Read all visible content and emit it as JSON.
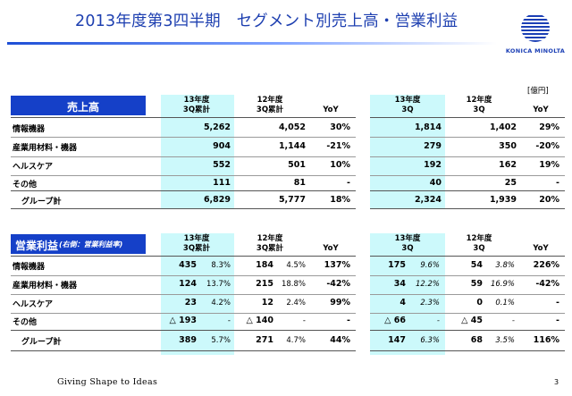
{
  "header": {
    "title": "2013年度第3四半期　セグメント別売上高・営業利益",
    "logo_text": "KONICA MINOLTA",
    "unit": "[億円]"
  },
  "sales_table": {
    "badge": "売上高",
    "cols": {
      "c1": "13年度\n3Q累計",
      "c2": "12年度\n3Q累計",
      "c3": "YoY",
      "c4": "13年度\n3Q",
      "c5": "12年度\n3Q",
      "c6": "YoY"
    },
    "rows": [
      {
        "label": "情報機器",
        "v1": "5,262",
        "v2": "4,052",
        "yoy1": "30%",
        "v3": "1,814",
        "v4": "1,402",
        "yoy2": "29%"
      },
      {
        "label": "産業用材料・機器",
        "v1": "904",
        "v2": "1,144",
        "yoy1": "-21%",
        "v3": "279",
        "v4": "350",
        "yoy2": "-20%"
      },
      {
        "label": "ヘルスケア",
        "v1": "552",
        "v2": "501",
        "yoy1": "10%",
        "v3": "192",
        "v4": "162",
        "yoy2": "19%"
      },
      {
        "label": "その他",
        "v1": "111",
        "v2": "81",
        "yoy1": "-",
        "v3": "40",
        "v4": "25",
        "yoy2": "-"
      },
      {
        "label": "グループ計",
        "v1": "6,829",
        "v2": "5,777",
        "yoy1": "18%",
        "v3": "2,324",
        "v4": "1,939",
        "yoy2": "20%"
      }
    ]
  },
  "op_table": {
    "badge_main": "営業利益",
    "badge_sub": "(右側：営業利益率)",
    "cols": {
      "c1": "13年度\n3Q累計",
      "c2": "12年度\n3Q累計",
      "c3": "YoY",
      "c4": "13年度\n3Q",
      "c5": "12年度\n3Q",
      "c6": "YoY"
    },
    "rows": [
      {
        "label": "情報機器",
        "v1": "435",
        "p1": "8.3%",
        "v2": "184",
        "p2": "4.5%",
        "yoy1": "137%",
        "v3": "175",
        "p3": "9.6%",
        "v4": "54",
        "p4": "3.8%",
        "yoy2": "226%"
      },
      {
        "label": "産業用材料・機器",
        "v1": "124",
        "p1": "13.7%",
        "v2": "215",
        "p2": "18.8%",
        "yoy1": "-42%",
        "v3": "34",
        "p3": "12.2%",
        "v4": "59",
        "p4": "16.9%",
        "yoy2": "-42%"
      },
      {
        "label": "ヘルスケア",
        "v1": "23",
        "p1": "4.2%",
        "v2": "12",
        "p2": "2.4%",
        "yoy1": "99%",
        "v3": "4",
        "p3": "2.3%",
        "v4": "0",
        "p4": "0.1%",
        "yoy2": "-"
      },
      {
        "label": "その他",
        "v1": "△ 193",
        "p1": "-",
        "v2": "△ 140",
        "p2": "-",
        "yoy1": "-",
        "v3": "△ 66",
        "p3": "-",
        "v4": "△ 45",
        "p4": "-",
        "yoy2": "-"
      },
      {
        "label": "グループ計",
        "v1": "389",
        "p1": "5.7%",
        "v2": "271",
        "p2": "4.7%",
        "yoy1": "44%",
        "v3": "147",
        "p3": "6.3%",
        "v4": "68",
        "p4": "3.5%",
        "yoy2": "116%"
      }
    ]
  },
  "footer": {
    "tagline": "Giving Shape to Ideas",
    "page": "3"
  },
  "colors": {
    "title": "#1d3fb0",
    "badge": "#1540c8",
    "highlight": "#ccf9fb"
  }
}
